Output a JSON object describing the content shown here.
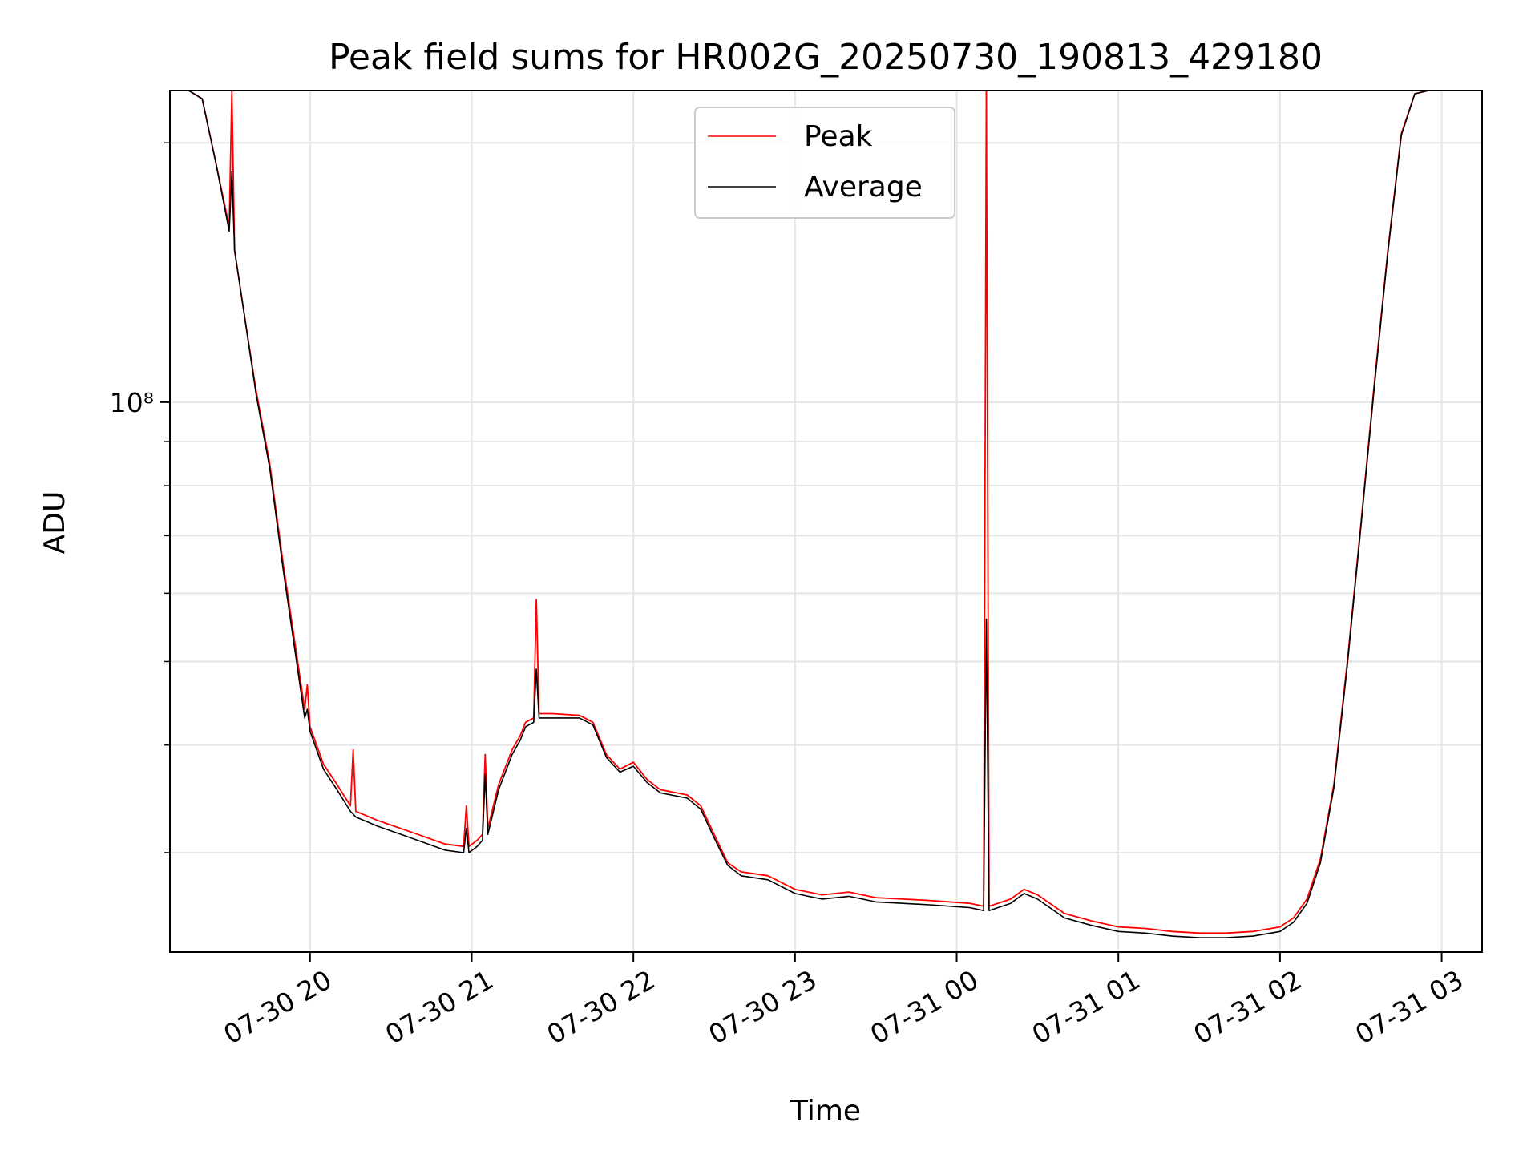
{
  "chart_data": {
    "type": "line",
    "title": "Peak field sums for HR002G_20250730_190813_429180",
    "xlabel": "Time",
    "ylabel": "ADU",
    "yscale": "log",
    "xlim": [
      "2025-07-30 19:08",
      "2025-07-31 03:15"
    ],
    "ylim": [
      23000000.0,
      230000000.0
    ],
    "x_ticks": [
      "07-30 20",
      "07-30 21",
      "07-30 22",
      "07-30 23",
      "07-31 00",
      "07-31 01",
      "07-31 02",
      "07-31 03"
    ],
    "x_tick_times": [
      "2025-07-30 20:00",
      "2025-07-30 21:00",
      "2025-07-30 22:00",
      "2025-07-30 23:00",
      "2025-07-31 00:00",
      "2025-07-31 01:00",
      "2025-07-31 02:00",
      "2025-07-31 03:00"
    ],
    "y_major_ticks": [
      {
        "value": 100000000,
        "label": "10⁸"
      }
    ],
    "y_minor_ticks": [
      30000000,
      40000000,
      50000000,
      60000000,
      70000000,
      80000000,
      90000000,
      200000000
    ],
    "grid": true,
    "legend_position": "top-center",
    "series": [
      {
        "name": "Peak",
        "color": "#ff0000",
        "points": [
          [
            "2025-07-30 19:15",
            230000000.0
          ],
          [
            "2025-07-30 19:20",
            225000000.0
          ],
          [
            "2025-07-30 19:25",
            190000000.0
          ],
          [
            "2025-07-30 19:30",
            160000000.0
          ],
          [
            "2025-07-30 19:31",
            230000000.0
          ],
          [
            "2025-07-30 19:32",
            150000000.0
          ],
          [
            "2025-07-30 19:35",
            130000000.0
          ],
          [
            "2025-07-30 19:40",
            103000000.0
          ],
          [
            "2025-07-30 19:45",
            85000000.0
          ],
          [
            "2025-07-30 19:50",
            65000000.0
          ],
          [
            "2025-07-30 19:55",
            51000000.0
          ],
          [
            "2025-07-30 19:58",
            44000000.0
          ],
          [
            "2025-07-30 19:59",
            47000000.0
          ],
          [
            "2025-07-30 20:00",
            42000000.0
          ],
          [
            "2025-07-30 20:05",
            38000000.0
          ],
          [
            "2025-07-30 20:10",
            36000000.0
          ],
          [
            "2025-07-30 20:15",
            34000000.0
          ],
          [
            "2025-07-30 20:16",
            39500000.0
          ],
          [
            "2025-07-30 20:17",
            33500000.0
          ],
          [
            "2025-07-30 20:25",
            32700000.0
          ],
          [
            "2025-07-30 20:30",
            32300000.0
          ],
          [
            "2025-07-30 20:40",
            31500000.0
          ],
          [
            "2025-07-30 20:50",
            30700000.0
          ],
          [
            "2025-07-30 20:57",
            30500000.0
          ],
          [
            "2025-07-30 20:58",
            34000000.0
          ],
          [
            "2025-07-30 20:59",
            30500000.0
          ],
          [
            "2025-07-30 21:02",
            31000000.0
          ],
          [
            "2025-07-30 21:04",
            31500000.0
          ],
          [
            "2025-07-30 21:05",
            39000000.0
          ],
          [
            "2025-07-30 21:06",
            32000000.0
          ],
          [
            "2025-07-30 21:10",
            36000000.0
          ],
          [
            "2025-07-30 21:15",
            39500000.0
          ],
          [
            "2025-07-30 21:18",
            41000000.0
          ],
          [
            "2025-07-30 21:20",
            42500000.0
          ],
          [
            "2025-07-30 21:23",
            43000000.0
          ],
          [
            "2025-07-30 21:24",
            59000000.0
          ],
          [
            "2025-07-30 21:25",
            43500000.0
          ],
          [
            "2025-07-30 21:30",
            43500000.0
          ],
          [
            "2025-07-30 21:40",
            43300000.0
          ],
          [
            "2025-07-30 21:45",
            42500000.0
          ],
          [
            "2025-07-30 21:50",
            39000000.0
          ],
          [
            "2025-07-30 21:55",
            37500000.0
          ],
          [
            "2025-07-30 22:00",
            38200000.0
          ],
          [
            "2025-07-30 22:05",
            36500000.0
          ],
          [
            "2025-07-30 22:10",
            35500000.0
          ],
          [
            "2025-07-30 22:20",
            35000000.0
          ],
          [
            "2025-07-30 22:25",
            34000000.0
          ],
          [
            "2025-07-30 22:30",
            31500000.0
          ],
          [
            "2025-07-30 22:35",
            29200000.0
          ],
          [
            "2025-07-30 22:40",
            28500000.0
          ],
          [
            "2025-07-30 22:50",
            28200000.0
          ],
          [
            "2025-07-30 23:00",
            27200000.0
          ],
          [
            "2025-07-30 23:10",
            26800000.0
          ],
          [
            "2025-07-30 23:20",
            27000000.0
          ],
          [
            "2025-07-30 23:30",
            26600000.0
          ],
          [
            "2025-07-30 23:40",
            26500000.0
          ],
          [
            "2025-07-30 23:50",
            26400000.0
          ],
          [
            "2025-07-31 00:05",
            26200000.0
          ],
          [
            "2025-07-31 00:10",
            26000000.0
          ],
          [
            "2025-07-31 00:11",
            230000000.0
          ],
          [
            "2025-07-31 00:12",
            26000000.0
          ],
          [
            "2025-07-31 00:20",
            26500000.0
          ],
          [
            "2025-07-31 00:25",
            27200000.0
          ],
          [
            "2025-07-31 00:30",
            26800000.0
          ],
          [
            "2025-07-31 00:40",
            25500000.0
          ],
          [
            "2025-07-31 00:50",
            25000000.0
          ],
          [
            "2025-07-31 01:00",
            24600000.0
          ],
          [
            "2025-07-31 01:10",
            24500000.0
          ],
          [
            "2025-07-31 01:20",
            24300000.0
          ],
          [
            "2025-07-31 01:30",
            24200000.0
          ],
          [
            "2025-07-31 01:40",
            24200000.0
          ],
          [
            "2025-07-31 01:50",
            24300000.0
          ],
          [
            "2025-07-31 02:00",
            24600000.0
          ],
          [
            "2025-07-31 02:05",
            25200000.0
          ],
          [
            "2025-07-31 02:10",
            26500000.0
          ],
          [
            "2025-07-31 02:15",
            29500000.0
          ],
          [
            "2025-07-31 02:20",
            36000000.0
          ],
          [
            "2025-07-31 02:25",
            50000000.0
          ],
          [
            "2025-07-31 02:30",
            72000000.0
          ],
          [
            "2025-07-31 02:35",
            105000000.0
          ],
          [
            "2025-07-31 02:40",
            150000000.0
          ],
          [
            "2025-07-31 02:45",
            205000000.0
          ],
          [
            "2025-07-31 02:50",
            228000000.0
          ],
          [
            "2025-07-31 02:55",
            230000000.0
          ],
          [
            "2025-07-31 03:15",
            230000000.0
          ]
        ]
      },
      {
        "name": "Average",
        "color": "#000000",
        "points": [
          [
            "2025-07-30 19:15",
            230000000.0
          ],
          [
            "2025-07-30 19:20",
            225000000.0
          ],
          [
            "2025-07-30 19:25",
            190000000.0
          ],
          [
            "2025-07-30 19:30",
            158000000.0
          ],
          [
            "2025-07-30 19:31",
            185000000.0
          ],
          [
            "2025-07-30 19:32",
            150000000.0
          ],
          [
            "2025-07-30 19:35",
            130000000.0
          ],
          [
            "2025-07-30 19:40",
            102000000.0
          ],
          [
            "2025-07-30 19:45",
            84000000.0
          ],
          [
            "2025-07-30 19:50",
            64000000.0
          ],
          [
            "2025-07-30 19:55",
            50000000.0
          ],
          [
            "2025-07-30 19:58",
            43000000.0
          ],
          [
            "2025-07-30 19:59",
            44000000.0
          ],
          [
            "2025-07-30 20:00",
            41500000.0
          ],
          [
            "2025-07-30 20:05",
            37500000.0
          ],
          [
            "2025-07-30 20:10",
            35500000.0
          ],
          [
            "2025-07-30 20:15",
            33500000.0
          ],
          [
            "2025-07-30 20:17",
            33000000.0
          ],
          [
            "2025-07-30 20:25",
            32200000.0
          ],
          [
            "2025-07-30 20:30",
            31800000.0
          ],
          [
            "2025-07-30 20:40",
            31000000.0
          ],
          [
            "2025-07-30 20:50",
            30200000.0
          ],
          [
            "2025-07-30 20:57",
            30000000.0
          ],
          [
            "2025-07-30 20:58",
            32000000.0
          ],
          [
            "2025-07-30 20:59",
            30000000.0
          ],
          [
            "2025-07-30 21:02",
            30500000.0
          ],
          [
            "2025-07-30 21:04",
            31000000.0
          ],
          [
            "2025-07-30 21:05",
            37000000.0
          ],
          [
            "2025-07-30 21:06",
            31500000.0
          ],
          [
            "2025-07-30 21:10",
            35500000.0
          ],
          [
            "2025-07-30 21:15",
            39000000.0
          ],
          [
            "2025-07-30 21:18",
            40500000.0
          ],
          [
            "2025-07-30 21:20",
            42000000.0
          ],
          [
            "2025-07-30 21:23",
            42500000.0
          ],
          [
            "2025-07-30 21:24",
            49000000.0
          ],
          [
            "2025-07-30 21:25",
            43000000.0
          ],
          [
            "2025-07-30 21:30",
            43000000.0
          ],
          [
            "2025-07-30 21:40",
            43000000.0
          ],
          [
            "2025-07-30 21:45",
            42200000.0
          ],
          [
            "2025-07-30 21:50",
            38700000.0
          ],
          [
            "2025-07-30 21:55",
            37200000.0
          ],
          [
            "2025-07-30 22:00",
            37800000.0
          ],
          [
            "2025-07-30 22:05",
            36200000.0
          ],
          [
            "2025-07-30 22:10",
            35200000.0
          ],
          [
            "2025-07-30 22:20",
            34700000.0
          ],
          [
            "2025-07-30 22:25",
            33700000.0
          ],
          [
            "2025-07-30 22:30",
            31200000.0
          ],
          [
            "2025-07-30 22:35",
            29000000.0
          ],
          [
            "2025-07-30 22:40",
            28200000.0
          ],
          [
            "2025-07-30 22:50",
            27900000.0
          ],
          [
            "2025-07-30 23:00",
            26900000.0
          ],
          [
            "2025-07-30 23:10",
            26500000.0
          ],
          [
            "2025-07-30 23:20",
            26700000.0
          ],
          [
            "2025-07-30 23:30",
            26300000.0
          ],
          [
            "2025-07-30 23:40",
            26200000.0
          ],
          [
            "2025-07-30 23:50",
            26100000.0
          ],
          [
            "2025-07-31 00:05",
            25900000.0
          ],
          [
            "2025-07-31 00:10",
            25700000.0
          ],
          [
            "2025-07-31 00:11",
            56000000.0
          ],
          [
            "2025-07-31 00:12",
            25700000.0
          ],
          [
            "2025-07-31 00:20",
            26200000.0
          ],
          [
            "2025-07-31 00:25",
            26900000.0
          ],
          [
            "2025-07-31 00:30",
            26500000.0
          ],
          [
            "2025-07-31 00:40",
            25200000.0
          ],
          [
            "2025-07-31 00:50",
            24700000.0
          ],
          [
            "2025-07-31 01:00",
            24300000.0
          ],
          [
            "2025-07-31 01:10",
            24200000.0
          ],
          [
            "2025-07-31 01:20",
            24000000.0
          ],
          [
            "2025-07-31 01:30",
            23900000.0
          ],
          [
            "2025-07-31 01:40",
            23900000.0
          ],
          [
            "2025-07-31 01:50",
            24000000.0
          ],
          [
            "2025-07-31 02:00",
            24300000.0
          ],
          [
            "2025-07-31 02:05",
            24900000.0
          ],
          [
            "2025-07-31 02:10",
            26200000.0
          ],
          [
            "2025-07-31 02:15",
            29200000.0
          ],
          [
            "2025-07-31 02:20",
            35700000.0
          ],
          [
            "2025-07-31 02:25",
            49500000.0
          ],
          [
            "2025-07-31 02:30",
            71500000.0
          ],
          [
            "2025-07-31 02:35",
            104000000.0
          ],
          [
            "2025-07-31 02:40",
            149000000.0
          ],
          [
            "2025-07-31 02:45",
            204000000.0
          ],
          [
            "2025-07-31 02:50",
            228000000.0
          ],
          [
            "2025-07-31 02:55",
            230000000.0
          ],
          [
            "2025-07-31 03:15",
            230000000.0
          ]
        ]
      }
    ]
  }
}
